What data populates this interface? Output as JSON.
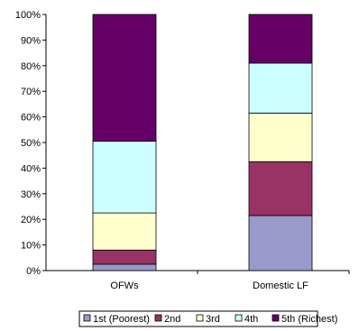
{
  "chart_data": {
    "type": "bar",
    "stacked": true,
    "percent": true,
    "categories": [
      "OFWs",
      "Domestic LF"
    ],
    "series": [
      {
        "name": "1st (Poorest)",
        "color": "#9999cc",
        "values": [
          2.5,
          21.5
        ]
      },
      {
        "name": "2nd",
        "color": "#993366",
        "values": [
          5.5,
          21.0
        ]
      },
      {
        "name": "3rd",
        "color": "#ffffcc",
        "values": [
          14.5,
          19.0
        ]
      },
      {
        "name": "4th",
        "color": "#ccffff",
        "values": [
          28.0,
          19.5
        ]
      },
      {
        "name": "5th (Richest)",
        "color": "#660066",
        "values": [
          49.5,
          19.0
        ]
      }
    ],
    "yticks": [
      "0%",
      "10%",
      "20%",
      "30%",
      "40%",
      "50%",
      "60%",
      "70%",
      "80%",
      "90%",
      "100%"
    ],
    "ylim": [
      0,
      100
    ],
    "grid": false,
    "legend": "bottom"
  }
}
